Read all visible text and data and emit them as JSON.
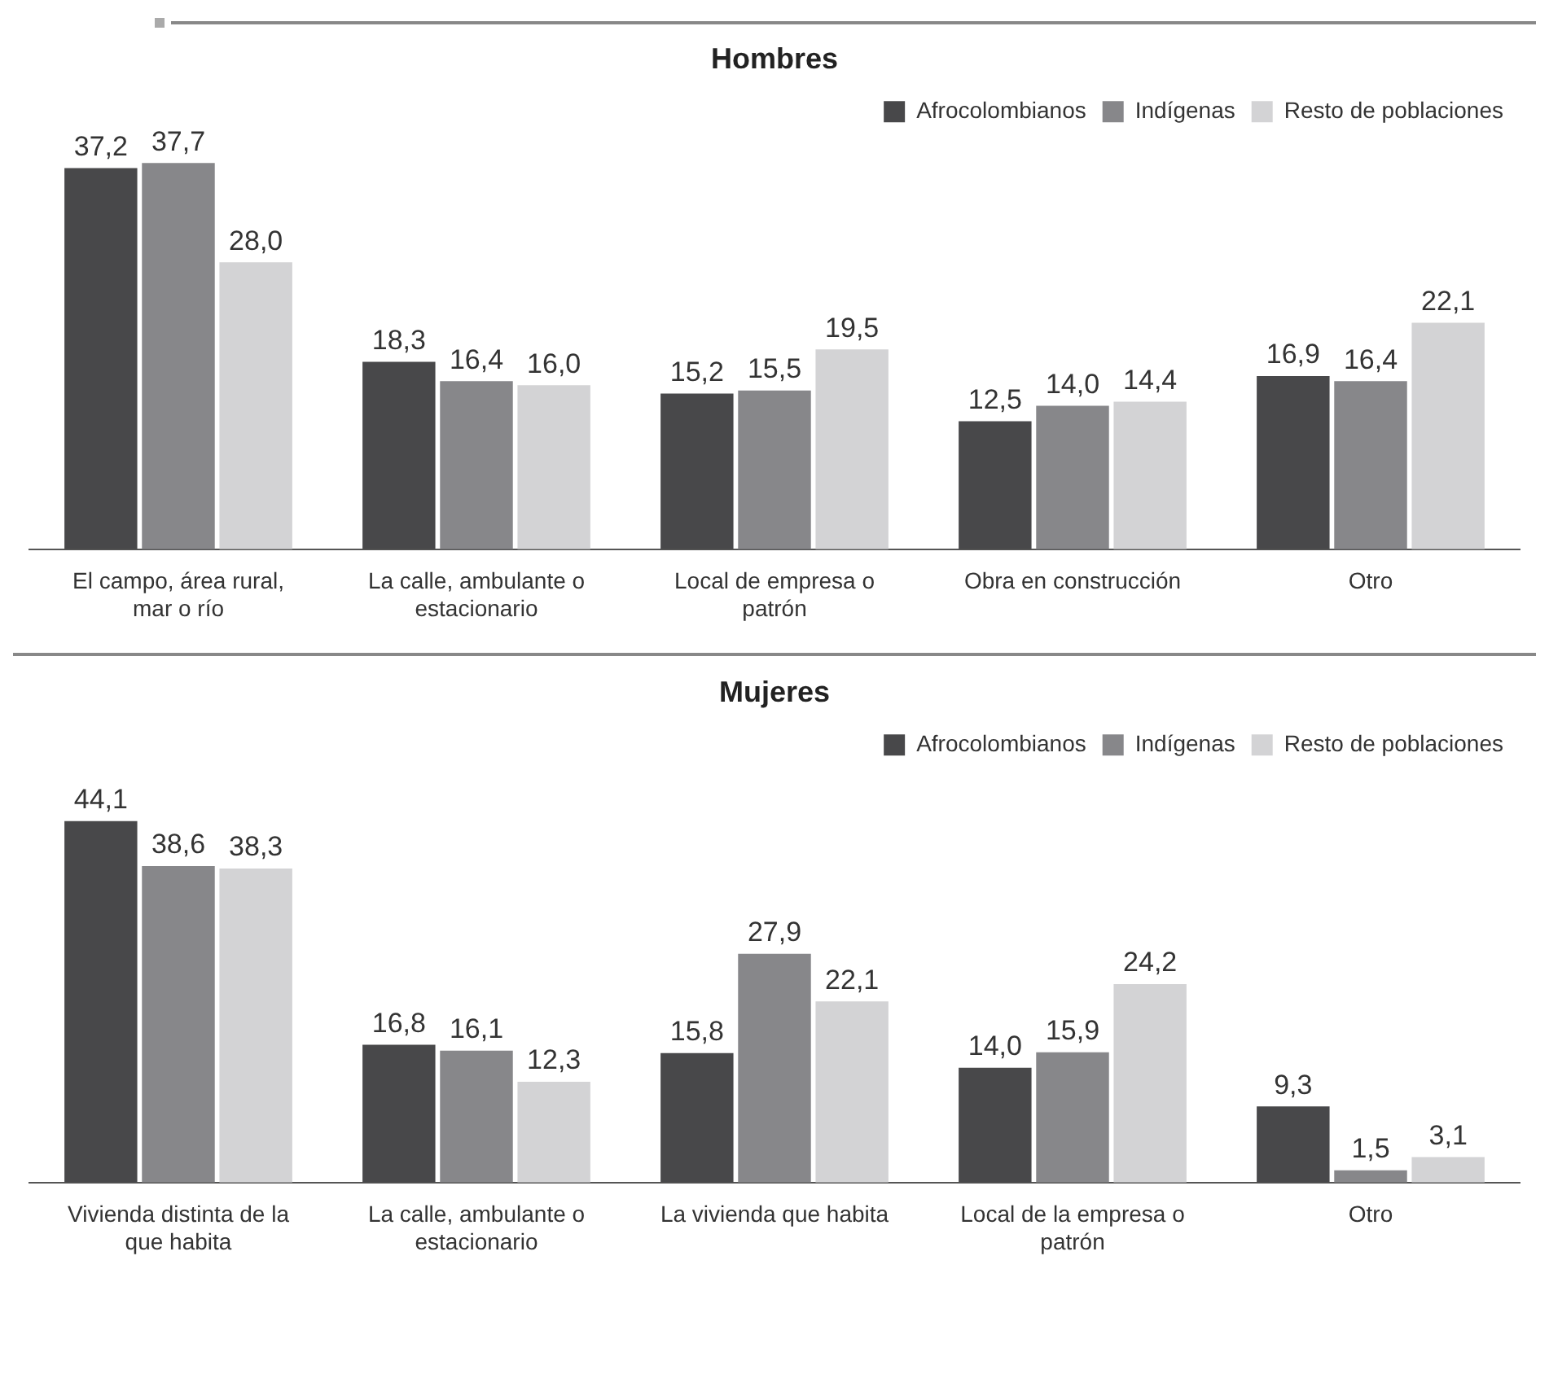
{
  "chart_data": [
    {
      "type": "bar",
      "title": "Hombres",
      "categories": [
        "El campo, área rural, mar o río",
        "La calle, ambulante o estacionario",
        "Local de empresa o patrón",
        "Obra en construcción",
        "Otro"
      ],
      "series": [
        {
          "name": "Afrocolombianos",
          "color": "#48484a",
          "values": [
            37.2,
            18.3,
            15.2,
            12.5,
            16.9
          ],
          "value_labels": [
            "37,2",
            "18,3",
            "15,2",
            "12,5",
            "16,9"
          ]
        },
        {
          "name": "Indígenas",
          "color": "#87878a",
          "values": [
            37.7,
            16.4,
            15.5,
            14.0,
            16.4
          ],
          "value_labels": [
            "37,7",
            "16,4",
            "15,5",
            "14,0",
            "16,4"
          ]
        },
        {
          "name": "Resto de poblaciones",
          "color": "#d3d3d5",
          "values": [
            28.0,
            16.0,
            19.5,
            14.4,
            22.1
          ],
          "value_labels": [
            "28,0",
            "16,0",
            "19,5",
            "14,4",
            "22,1"
          ]
        }
      ],
      "legend": "top right",
      "grid": false
    },
    {
      "type": "bar",
      "title": "Mujeres",
      "categories": [
        "Vivienda distinta de la que habita",
        "La calle, ambulante o estacionario",
        "La vivienda que habita",
        "Local de la empresa o patrón",
        "Otro"
      ],
      "series": [
        {
          "name": "Afrocolombianos",
          "color": "#48484a",
          "values": [
            44.1,
            16.8,
            15.8,
            14.0,
            9.3
          ],
          "value_labels": [
            "44,1",
            "16,8",
            "15,8",
            "14,0",
            "9,3"
          ]
        },
        {
          "name": "Indígenas",
          "color": "#87878a",
          "values": [
            38.6,
            16.1,
            27.9,
            15.9,
            1.5
          ],
          "value_labels": [
            "38,6",
            "16,1",
            "27,9",
            "15,9",
            "1,5"
          ]
        },
        {
          "name": "Resto de poblaciones",
          "color": "#d3d3d5",
          "values": [
            38.3,
            12.3,
            22.1,
            24.2,
            3.1
          ],
          "value_labels": [
            "38,3",
            "12,3",
            "22,1",
            "24,2",
            "3,1"
          ]
        }
      ],
      "legend": "top right",
      "grid": false
    }
  ]
}
